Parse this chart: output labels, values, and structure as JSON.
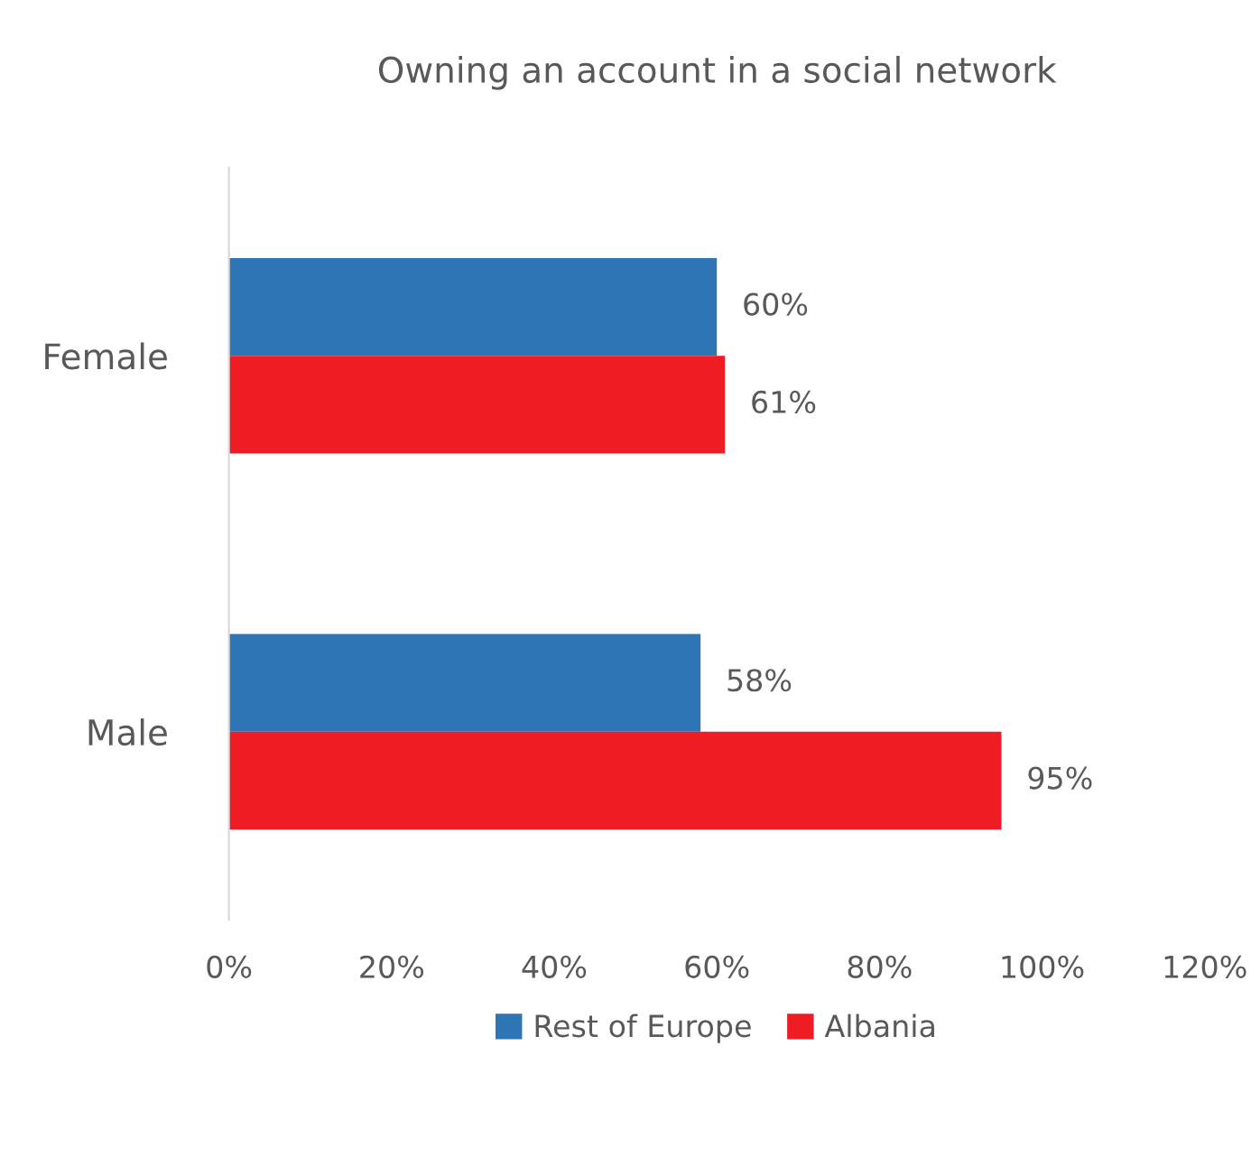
{
  "chart_data": {
    "type": "bar",
    "orientation": "horizontal",
    "title": "Owning an account in a social network",
    "categories": [
      "Female",
      "Male"
    ],
    "series": [
      {
        "name": "Rest of Europe",
        "color": "#2e75b6",
        "values": [
          60,
          58
        ],
        "value_labels": [
          "60%",
          "58%"
        ]
      },
      {
        "name": "Albania",
        "color": "#ee1c25",
        "values": [
          61,
          95
        ],
        "value_labels": [
          "61%",
          "95%"
        ]
      }
    ],
    "xlim": [
      0,
      120
    ],
    "xticks": [
      {
        "value": 0,
        "label": "0%"
      },
      {
        "value": 20,
        "label": "20%"
      },
      {
        "value": 40,
        "label": "40%"
      },
      {
        "value": 60,
        "label": "60%"
      },
      {
        "value": 80,
        "label": "80%"
      },
      {
        "value": 100,
        "label": "100%"
      },
      {
        "value": 120,
        "label": "120%"
      }
    ],
    "grid": false,
    "legend": "bottom"
  }
}
